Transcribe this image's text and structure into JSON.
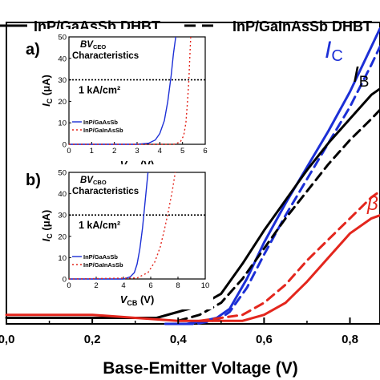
{
  "colors": {
    "black": "#000000",
    "blue": "#1c2fd6",
    "red": "#e3261d",
    "dot": "#000000"
  },
  "legend": {
    "solid_label": "InP/GaAsSb DHBT",
    "dashed_label": "InP/GaInAsSb DHBT"
  },
  "main": {
    "xlabel": "Base-Emitter Voltage (V)",
    "x_ticks": [
      "0,0",
      "0,2",
      "0,4",
      "0,6",
      "0,8"
    ],
    "labels": {
      "ic": "I",
      "ic_sub": "C",
      "ib": "I",
      "ib_sub": "B",
      "beta": "β"
    }
  },
  "inset_a": {
    "panel_label": "a)",
    "title_main": "BV",
    "title_sub": "CEO",
    "title_line2": "Characteristics",
    "ylabel": "I",
    "ylabel_sub": "C",
    "ylabel_unit": " (μA)",
    "xlabel": "V",
    "xlabel_sub": "CB",
    "xlabel_unit": " (V)",
    "density_label": "1 kA/cm²",
    "legend": [
      "InP/GaAsSb",
      "InP/GaInAsSb"
    ],
    "x_ticks": [
      "0",
      "1",
      "2",
      "3",
      "4",
      "5",
      "6"
    ],
    "y_ticks": [
      "0",
      "10",
      "20",
      "30",
      "40",
      "50"
    ]
  },
  "inset_b": {
    "panel_label": "b)",
    "title_main": "BV",
    "title_sub": "CBO",
    "title_line2": "Characteristics",
    "ylabel": "I",
    "ylabel_sub": "C",
    "ylabel_unit": " (μA)",
    "xlabel": "V",
    "xlabel_sub": "CB",
    "xlabel_unit": " (V)",
    "density_label": "1 kA/cm²",
    "legend": [
      "InP/GaAsSb",
      "InP/GaInAsSb"
    ],
    "x_ticks": [
      "0",
      "2",
      "4",
      "6",
      "8",
      "10"
    ],
    "y_ticks": [
      "0",
      "10",
      "20",
      "30",
      "40",
      "50"
    ]
  },
  "chart_data": [
    {
      "type": "line",
      "title": "",
      "xlabel": "Base-Emitter Voltage (V)",
      "ylabel": "",
      "xlim": [
        0.0,
        0.87
      ],
      "ylim": [
        0,
        100
      ],
      "legend_placement": "top",
      "series": [
        {
          "name": "InP/GaAsSb DHBT I_C",
          "color": "blue",
          "dash": "solid",
          "x": [
            0.37,
            0.42,
            0.46,
            0.49,
            0.5,
            0.52,
            0.56,
            0.6,
            0.65,
            0.7,
            0.75,
            0.8,
            0.85,
            0.87
          ],
          "y": [
            0,
            0,
            1,
            2,
            3,
            5,
            15,
            27,
            40,
            52,
            64,
            77,
            92,
            98
          ]
        },
        {
          "name": "InP/GaInAsSb DHBT I_C",
          "color": "blue",
          "dash": "dashed",
          "x": [
            0.38,
            0.44,
            0.48,
            0.5,
            0.52,
            0.56,
            0.6,
            0.65,
            0.7,
            0.75,
            0.8,
            0.85,
            0.87
          ],
          "y": [
            0,
            0,
            1,
            2,
            4,
            12,
            23,
            36,
            48,
            60,
            72,
            86,
            92
          ]
        },
        {
          "name": "InP/GaAsSb DHBT I_B",
          "color": "black",
          "dash": "solid",
          "x": [
            0.0,
            0.1,
            0.2,
            0.3,
            0.35,
            0.4,
            0.45,
            0.5,
            0.55,
            0.6,
            0.65,
            0.7,
            0.75,
            0.8,
            0.85,
            0.87
          ],
          "y": [
            2,
            2,
            2,
            2,
            2,
            4,
            6,
            10,
            20,
            31,
            41,
            51,
            60,
            68,
            76,
            78
          ]
        },
        {
          "name": "InP/GaInAsSb DHBT I_B",
          "color": "black",
          "dash": "dashed",
          "x": [
            0.4,
            0.45,
            0.5,
            0.55,
            0.6,
            0.65,
            0.7,
            0.75,
            0.8,
            0.85,
            0.87
          ],
          "y": [
            1,
            3,
            7,
            15,
            25,
            35,
            44,
            53,
            61,
            68,
            71
          ]
        },
        {
          "name": "InP/GaAsSb DHBT β",
          "color": "red",
          "dash": "solid",
          "x": [
            0.0,
            0.1,
            0.2,
            0.3,
            0.4,
            0.45,
            0.5,
            0.55,
            0.6,
            0.65,
            0.7,
            0.75,
            0.8,
            0.85,
            0.87
          ],
          "y": [
            3,
            3,
            3,
            2,
            1,
            1,
            1,
            1,
            3,
            7,
            14,
            22,
            30,
            35,
            36
          ]
        },
        {
          "name": "InP/GaInAsSb DHBT β",
          "color": "red",
          "dash": "dashed",
          "x": [
            0.45,
            0.5,
            0.55,
            0.6,
            0.65,
            0.7,
            0.75,
            0.8,
            0.85,
            0.87
          ],
          "y": [
            1,
            2,
            3,
            7,
            13,
            21,
            28,
            35,
            42,
            44
          ]
        }
      ]
    },
    {
      "type": "line",
      "title": "BVCEO Characteristics",
      "xlabel": "VCB (V)",
      "ylabel": "IC (μA)",
      "xlim": [
        0,
        6
      ],
      "ylim": [
        0,
        50
      ],
      "legend_placement": "bottom-left",
      "reference_line": {
        "y": 30,
        "label": "1 kA/cm²"
      },
      "series": [
        {
          "name": "InP/GaAsSb",
          "color": "blue",
          "dash": "solid",
          "x": [
            0,
            3.0,
            3.5,
            3.8,
            4.0,
            4.2,
            4.35,
            4.5,
            4.6,
            4.7
          ],
          "y": [
            0,
            0,
            0.5,
            2,
            5,
            11,
            20,
            32,
            42,
            50
          ]
        },
        {
          "name": "InP/GaInAsSb",
          "color": "red",
          "dash": "dotted",
          "x": [
            0,
            4.6,
            4.9,
            5.05,
            5.15,
            5.22,
            5.28,
            5.32,
            5.36
          ],
          "y": [
            0,
            0,
            1,
            4,
            10,
            20,
            30,
            40,
            50
          ]
        }
      ]
    },
    {
      "type": "line",
      "title": "BVCBO Characteristics",
      "xlabel": "VCB (V)",
      "ylabel": "IC (μA)",
      "xlim": [
        0,
        10
      ],
      "ylim": [
        0,
        50
      ],
      "legend_placement": "bottom-left",
      "reference_line": {
        "y": 30,
        "label": "1 kA/cm²"
      },
      "series": [
        {
          "name": "InP/GaAsSb",
          "color": "blue",
          "dash": "solid",
          "x": [
            0,
            4.0,
            4.5,
            4.8,
            5.0,
            5.2,
            5.4,
            5.6,
            5.8
          ],
          "y": [
            0,
            0,
            1,
            3,
            7,
            14,
            24,
            37,
            50
          ]
        },
        {
          "name": "InP/GaInAsSb",
          "color": "red",
          "dash": "dotted",
          "x": [
            0,
            5.0,
            5.8,
            6.3,
            6.7,
            7.0,
            7.3,
            7.6,
            7.8
          ],
          "y": [
            0,
            0.5,
            3,
            8,
            15,
            23,
            32,
            42,
            50
          ]
        }
      ]
    }
  ]
}
